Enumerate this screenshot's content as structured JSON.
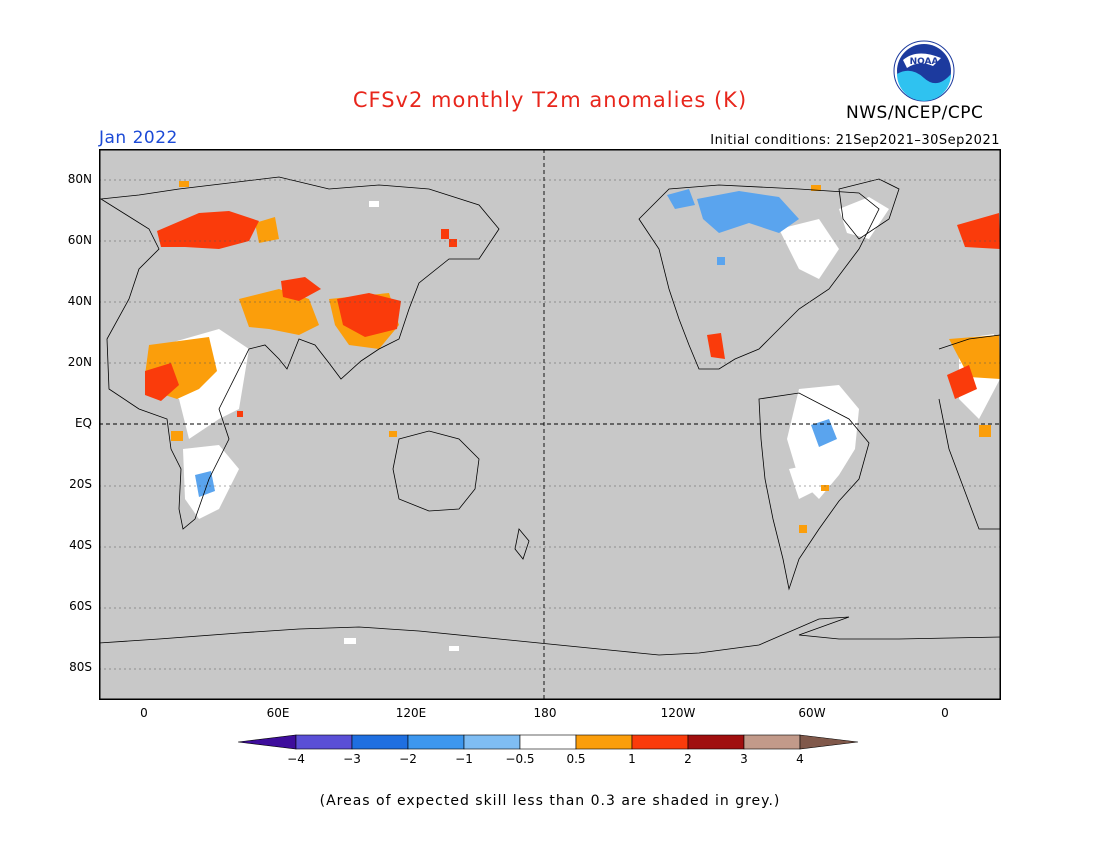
{
  "header": {
    "title": "CFSv2 monthly T2m anomalies (K)",
    "agency": "NWS/NCEP/CPC",
    "logo_text": "NOAA",
    "month": "Jan 2022",
    "initial_conditions": "Initial conditions: 21Sep2021–30Sep2021"
  },
  "axes": {
    "lat_labels": [
      "80N",
      "60N",
      "40N",
      "20N",
      "EQ",
      "20S",
      "40S",
      "60S",
      "80S"
    ],
    "lon_labels": [
      "0",
      "60E",
      "120E",
      "180",
      "120W",
      "60W",
      "0"
    ]
  },
  "legend": {
    "labels": [
      "−4",
      "−3",
      "−2",
      "−1",
      "−0.5",
      "0.5",
      "1",
      "2",
      "3",
      "4"
    ],
    "colors": [
      "#3e0d9c",
      "#5a4fd6",
      "#1f6fe0",
      "#3d97ee",
      "#7fbdf3",
      "#ffffff",
      "#fb9e0b",
      "#fa3b0b",
      "#a00f0f",
      "#c29a8a",
      "#80584a"
    ]
  },
  "colors": {
    "skill_grey": "#c8c8c8",
    "map_white": "#ffffff",
    "anomaly_orange": "#fb9e0b",
    "anomaly_red": "#fa3b0b",
    "anomaly_lightblue": "#5aa4ee"
  },
  "footnote": "(Areas of expected skill less than 0.3 are shaded in grey.)"
}
